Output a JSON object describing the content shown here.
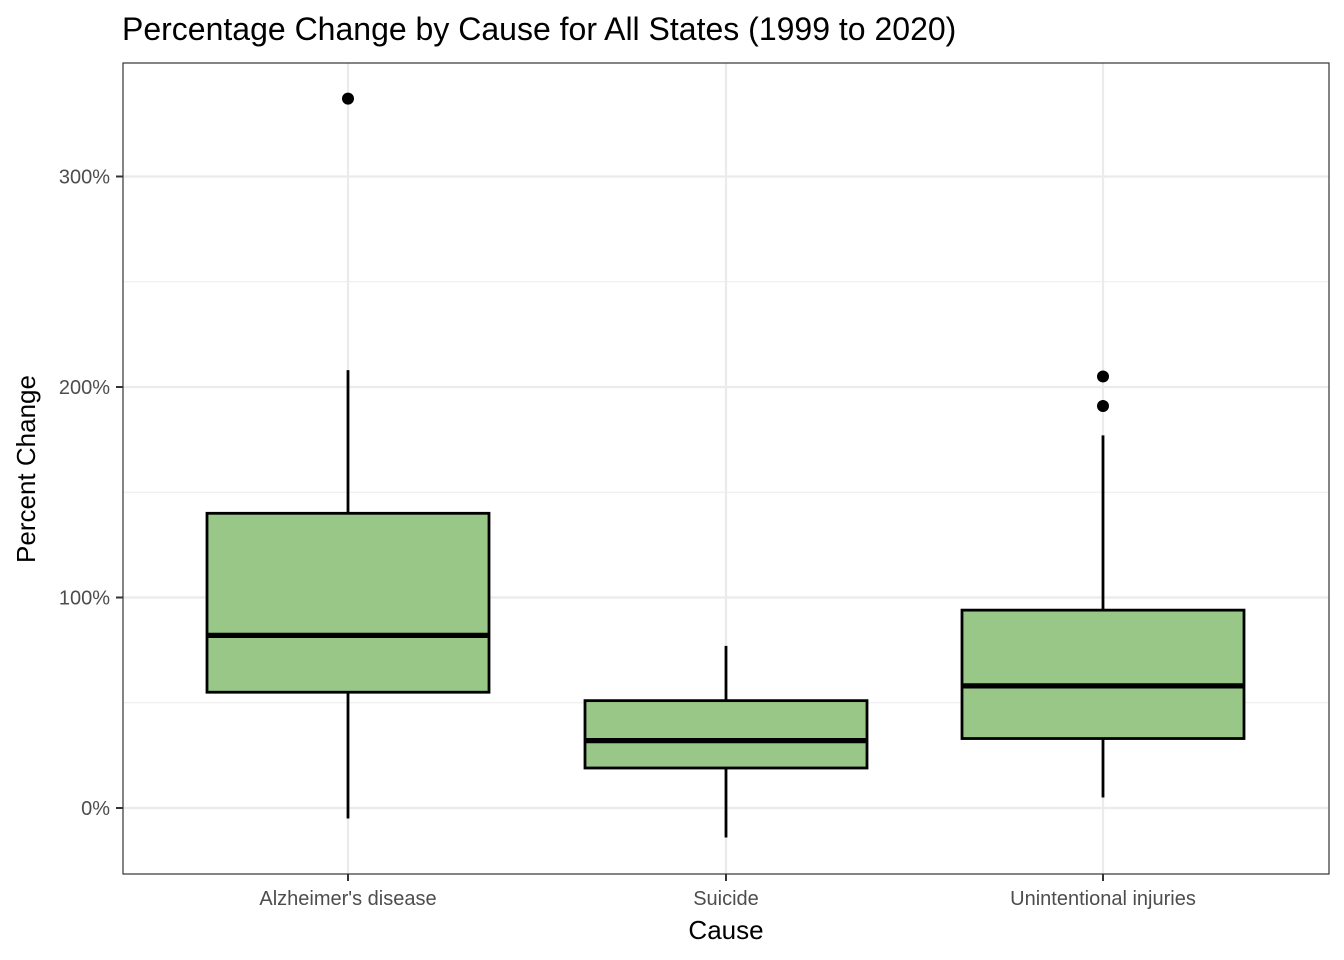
{
  "chart_data": {
    "type": "box",
    "title": "Percentage Change by Cause for All States (1999 to 2020)",
    "xlabel": "Cause",
    "ylabel": "Percent Change",
    "categories": [
      "Alzheimer's disease",
      "Suicide",
      "Unintentional injuries"
    ],
    "boxes": [
      {
        "category": "Alzheimer's disease",
        "whisker_low": -5,
        "q1": 55,
        "median": 82,
        "q3": 140,
        "whisker_high": 208,
        "outliers": [
          337
        ]
      },
      {
        "category": "Suicide",
        "whisker_low": -14,
        "q1": 19,
        "median": 32,
        "q3": 51,
        "whisker_high": 77,
        "outliers": []
      },
      {
        "category": "Unintentional injuries",
        "whisker_low": 5,
        "q1": 33,
        "median": 58,
        "q3": 94,
        "whisker_high": 177,
        "outliers": [
          191,
          205
        ]
      }
    ],
    "yticks": [
      0,
      100,
      200,
      300
    ],
    "ytick_labels": [
      "0%",
      "100%",
      "200%",
      "300%"
    ],
    "ylim": [
      -31,
      354
    ],
    "fill_color": "#98C788",
    "grid": true,
    "legend": "none"
  }
}
